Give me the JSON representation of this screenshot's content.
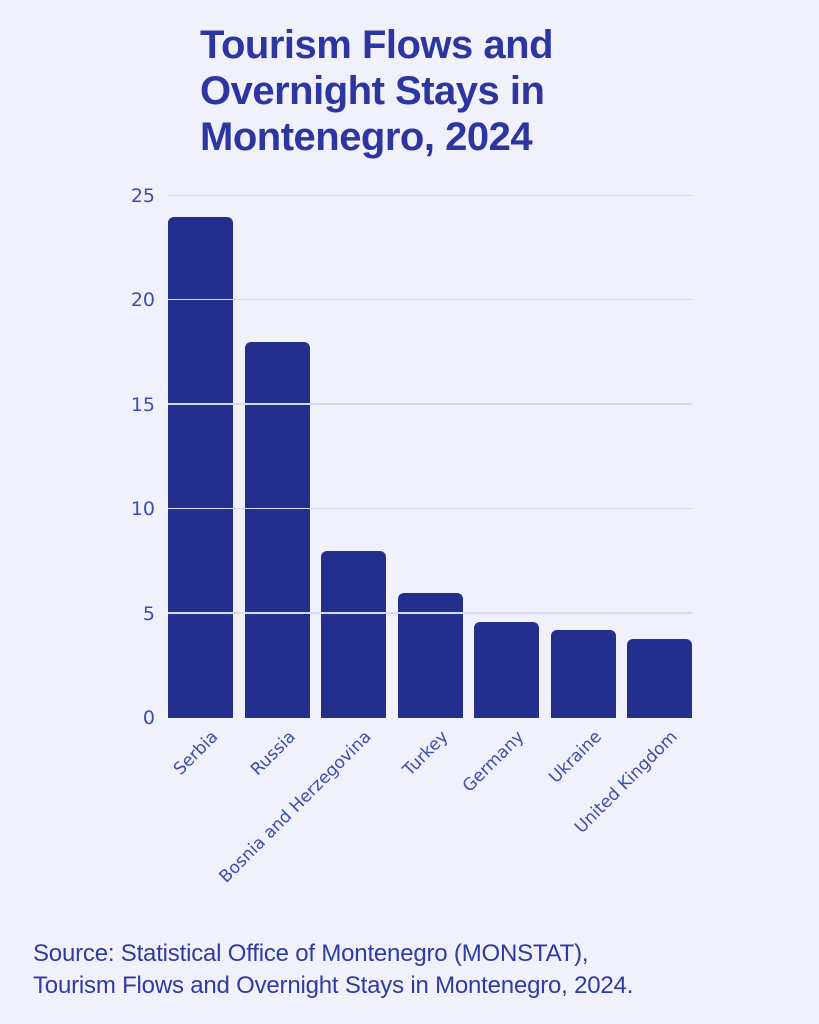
{
  "title": {
    "text": "Tourism Flows and Overnight Stays in Montenegro, 2024",
    "lines": [
      "Tourism Flows and",
      "Overnight Stays in",
      "Montenegro, 2024"
    ]
  },
  "chart_data": {
    "type": "bar",
    "title": "Tourism Flows and Overnight Stays in Montenegro, 2024",
    "categories": [
      "Serbia",
      "Russia",
      "Bosnia and Herzegovina",
      "Turkey",
      "Germany",
      "Ukraine",
      "United Kingdom"
    ],
    "values": [
      24,
      18,
      8,
      6,
      4.6,
      4.2,
      3.8
    ],
    "xlabel": "",
    "ylabel": "",
    "ylim": [
      0,
      25
    ],
    "yticks": [
      0,
      5,
      10,
      15,
      20,
      25
    ],
    "grid": true,
    "legend": false,
    "x_tick_rotation_deg": 45
  },
  "source": {
    "lines": [
      "Source: Statistical Office of Montenegro (MONSTAT),",
      "Tourism Flows and Overnight Stays in Montenegro, 2024."
    ]
  },
  "colors": {
    "background": "#f1f1fb",
    "bar": "#242f8d",
    "title_text": "#2c35a0",
    "axis_text": "#3c4cb0",
    "gridline": "#d7daee",
    "source_text": "#2e3ba0"
  }
}
